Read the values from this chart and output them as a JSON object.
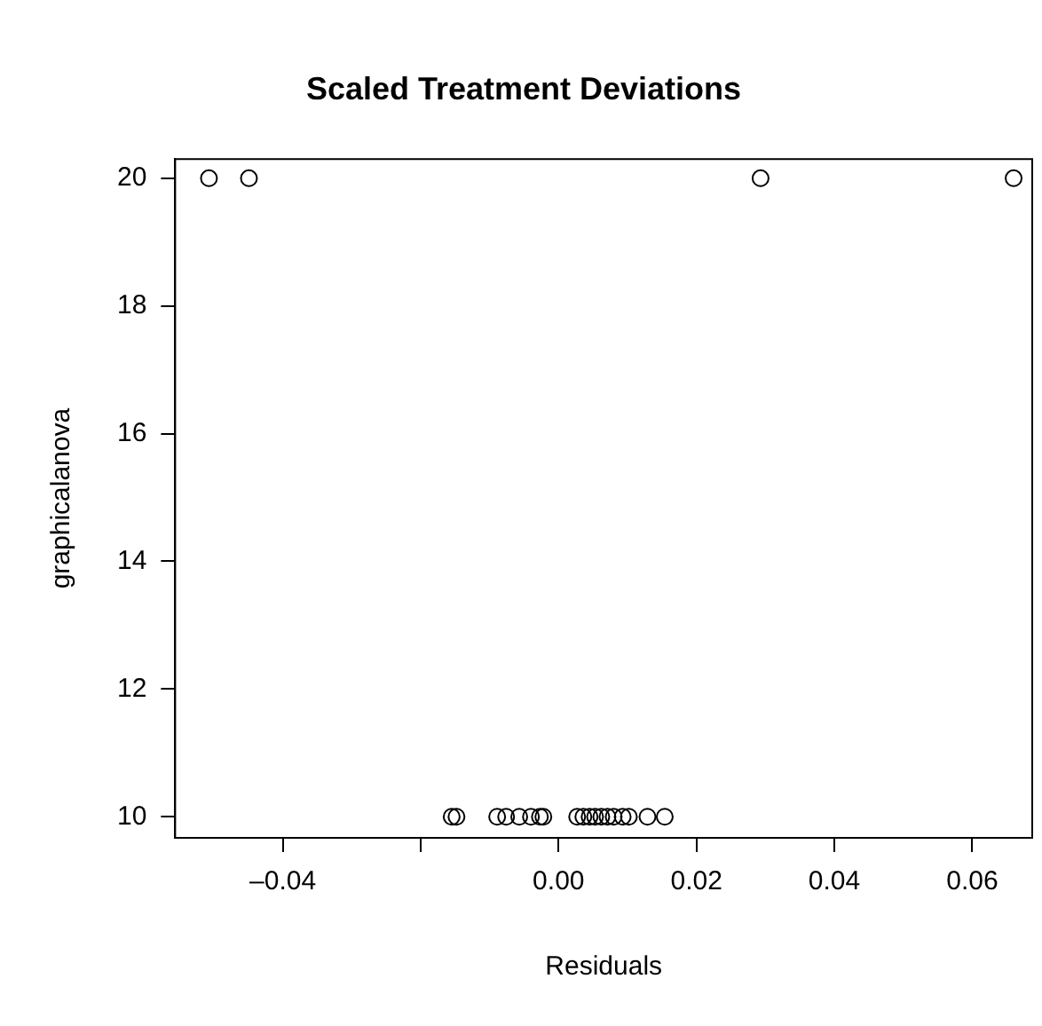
{
  "chart_data": {
    "type": "scatter",
    "title": "Scaled Treatment Deviations",
    "xlabel": "Residuals",
    "ylabel": "graphicalanova",
    "x": [
      -0.0507,
      -0.0449,
      0.0293,
      0.066,
      -0.0155,
      -0.0148,
      -0.0089,
      -0.0076,
      -0.0057,
      -0.004,
      -0.0027,
      -0.0022,
      0.0027,
      0.0036,
      0.0045,
      0.0053,
      0.0062,
      0.0071,
      0.008,
      0.0093,
      0.0102,
      0.0129,
      0.0154
    ],
    "values": [
      20,
      20,
      20,
      20,
      10,
      10,
      10,
      10,
      10,
      10,
      10,
      10,
      10,
      10,
      10,
      10,
      10,
      10,
      10,
      10,
      10,
      10,
      10
    ],
    "color": "#000000",
    "marker": "circle",
    "grid": false,
    "legend": false,
    "xlim": [
      -0.0556,
      0.0687
    ],
    "xticks": [
      {
        "value": -0.04,
        "label": "–0.04"
      },
      {
        "value": -0.02,
        "label": null
      },
      "0.00",
      0.02,
      0.04,
      0.06
    ],
    "ylim": [
      9.67,
      20.3
    ],
    "yticks": [
      10,
      12,
      14,
      16,
      18,
      20
    ]
  }
}
